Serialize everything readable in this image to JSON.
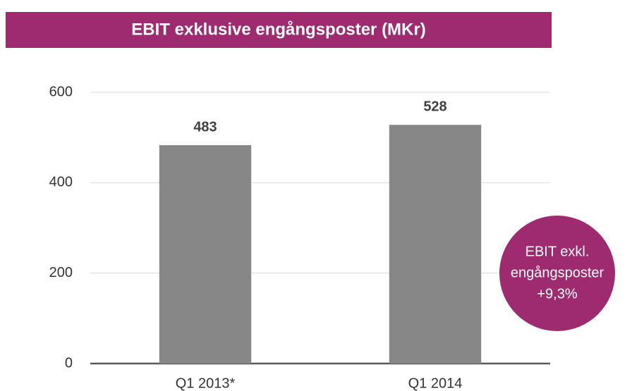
{
  "chart_data": {
    "type": "bar",
    "title": "EBIT exklusive engångsposter (MKr)",
    "categories": [
      "Q1 2013*",
      "Q1 2014"
    ],
    "values": [
      483,
      528
    ],
    "color": "#878787",
    "ylim": [
      0,
      600
    ],
    "yticks": [
      0,
      200,
      400,
      600
    ],
    "grid": true,
    "annotation": [
      "EBIT exkl.",
      "engångsposter",
      "+9,3%"
    ],
    "accent_color": "#9e2a6f"
  }
}
